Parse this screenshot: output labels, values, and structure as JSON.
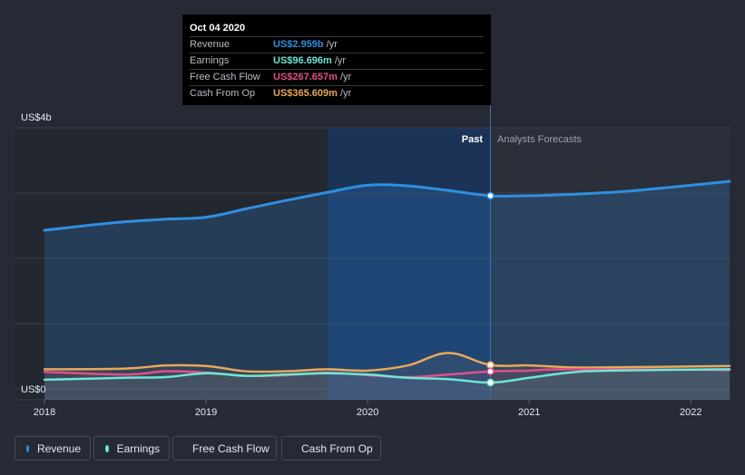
{
  "tooltip": {
    "date": "Oct 04 2020",
    "rows": [
      {
        "label": "Revenue",
        "value": "US$2.959b",
        "unit": "/yr",
        "color": "#2f8fe0"
      },
      {
        "label": "Earnings",
        "value": "US$96.696m",
        "unit": "/yr",
        "color": "#6ee6d4"
      },
      {
        "label": "Free Cash Flow",
        "value": "US$267.657m",
        "unit": "/yr",
        "color": "#e0508a"
      },
      {
        "label": "Cash From Op",
        "value": "US$365.609m",
        "unit": "/yr",
        "color": "#e8a85a"
      }
    ]
  },
  "legend": [
    {
      "label": "Revenue",
      "color": "#2f8fe0"
    },
    {
      "label": "Earnings",
      "color": "#6ee6d4"
    },
    {
      "label": "Free Cash Flow",
      "color": "#e0508a"
    },
    {
      "label": "Cash From Op",
      "color": "#e8a85a"
    }
  ],
  "chart_data": {
    "type": "area",
    "ylim": [
      0,
      4
    ],
    "y_unit_labels": {
      "top": "US$4b",
      "bottom": "US$0"
    },
    "x_ticks": [
      "2018",
      "2019",
      "2020",
      "2021",
      "2022"
    ],
    "xlim": [
      2018.0,
      2022.24
    ],
    "divider_x": 2020.76,
    "highlight_start_x": 2019.75,
    "past_label": "Past",
    "forecast_label": "Analysts Forecasts",
    "grid": true,
    "series": [
      {
        "name": "Revenue",
        "color": "#2f8fe0",
        "fill": true,
        "x": [
          2018.0,
          2018.25,
          2018.5,
          2018.75,
          2019.0,
          2019.25,
          2019.5,
          2019.75,
          2020.0,
          2020.25,
          2020.5,
          2020.76,
          2021.0,
          2021.25,
          2021.5,
          2021.75,
          2022.0,
          2022.24
        ],
        "y": [
          2.43,
          2.5,
          2.56,
          2.6,
          2.63,
          2.76,
          2.89,
          3.01,
          3.12,
          3.11,
          3.04,
          2.959,
          2.96,
          2.98,
          3.01,
          3.06,
          3.12,
          3.18
        ]
      },
      {
        "name": "Earnings",
        "color": "#6ee6d4",
        "fill": false,
        "x": [
          2018.0,
          2018.5,
          2018.75,
          2019.0,
          2019.25,
          2019.5,
          2019.75,
          2020.0,
          2020.25,
          2020.5,
          2020.76,
          2021.0,
          2021.25,
          2021.5,
          2022.24
        ],
        "y": [
          0.14,
          0.17,
          0.18,
          0.24,
          0.2,
          0.22,
          0.24,
          0.22,
          0.17,
          0.15,
          0.097,
          0.17,
          0.25,
          0.28,
          0.3
        ]
      },
      {
        "name": "Free Cash Flow",
        "color": "#e0508a",
        "fill": false,
        "x": [
          2018.0,
          2018.5,
          2018.75,
          2019.0,
          2019.25,
          2019.5,
          2019.75,
          2020.0,
          2020.25,
          2020.5,
          2020.76,
          2021.0,
          2021.25,
          2022.24
        ],
        "y": [
          0.26,
          0.22,
          0.27,
          0.25,
          0.2,
          0.21,
          0.25,
          0.21,
          0.18,
          0.22,
          0.268,
          0.28,
          0.3,
          0.29
        ]
      },
      {
        "name": "Cash From Op",
        "color": "#e8a85a",
        "fill": false,
        "x": [
          2018.0,
          2018.5,
          2018.75,
          2019.0,
          2019.25,
          2019.5,
          2019.75,
          2020.0,
          2020.25,
          2020.5,
          2020.76,
          2021.0,
          2021.25,
          2021.5,
          2022.24
        ],
        "y": [
          0.3,
          0.31,
          0.36,
          0.35,
          0.27,
          0.27,
          0.3,
          0.28,
          0.36,
          0.55,
          0.366,
          0.36,
          0.33,
          0.33,
          0.35
        ]
      }
    ]
  }
}
